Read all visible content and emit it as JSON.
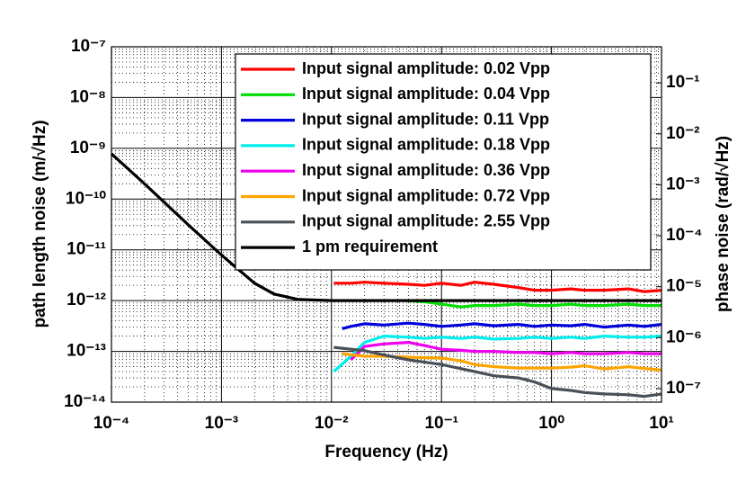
{
  "chart_data": {
    "type": "line",
    "xlabel": "Frequency (Hz)",
    "ylabel": "path length noise (m/√Hz)",
    "y2label": "phase noise (rad/√Hz)",
    "xscale": "log",
    "yscale": "log",
    "grid": true,
    "minor_grid": true,
    "legend": "upper right",
    "xlim": [
      0.0001,
      10
    ],
    "xticks": [
      {
        "value": 0.0001,
        "label": "10⁻⁴"
      },
      {
        "value": 0.001,
        "label": "10⁻³"
      },
      {
        "value": 0.01,
        "label": "10⁻²"
      },
      {
        "value": 0.1,
        "label": "10⁻¹"
      },
      {
        "value": 1,
        "label": "10⁰"
      },
      {
        "value": 10,
        "label": "10¹"
      }
    ],
    "ylim": [
      1e-14,
      1e-07
    ],
    "yticks": [
      {
        "value": 1e-14,
        "label": "10⁻¹⁴"
      },
      {
        "value": 1e-13,
        "label": "10⁻¹³"
      },
      {
        "value": 1e-12,
        "label": "10⁻¹²"
      },
      {
        "value": 1e-11,
        "label": "10⁻¹¹"
      },
      {
        "value": 1e-10,
        "label": "10⁻¹⁰"
      },
      {
        "value": 1e-09,
        "label": "10⁻⁹"
      },
      {
        "value": 1e-08,
        "label": "10⁻⁸"
      },
      {
        "value": 1e-07,
        "label": "10⁻⁷"
      }
    ],
    "y2lim": [
      5.42e-08,
      0.513
    ],
    "y2ticks": [
      {
        "value": 1e-07,
        "label": "10⁻⁷"
      },
      {
        "value": 1e-06,
        "label": "10⁻⁶"
      },
      {
        "value": 1e-05,
        "label": "10⁻⁵"
      },
      {
        "value": 0.0001,
        "label": "10⁻⁴"
      },
      {
        "value": 0.001,
        "label": "10⁻³"
      },
      {
        "value": 0.01,
        "label": "10⁻²"
      },
      {
        "value": 0.1,
        "label": "10⁻¹"
      }
    ],
    "series": [
      {
        "name": "Input signal amplitude: 0.02 Vpp",
        "color": "#ff0000",
        "x": [
          0.0105,
          0.015,
          0.02,
          0.03,
          0.05,
          0.07,
          0.1,
          0.15,
          0.2,
          0.3,
          0.5,
          0.7,
          1,
          1.5,
          2,
          3,
          5,
          7,
          10
        ],
        "values": [
          2.2e-12,
          2.2e-12,
          2.3e-12,
          2.2e-12,
          2.1e-12,
          2e-12,
          2.2e-12,
          2e-12,
          2.3e-12,
          2.1e-12,
          1.8e-12,
          1.6e-12,
          1.6e-12,
          1.7e-12,
          1.6e-12,
          1.6e-12,
          1.7e-12,
          1.5e-12,
          1.6e-12
        ]
      },
      {
        "name": "Input signal amplitude: 0.04 Vpp",
        "color": "#00dd00",
        "x": [
          0.05,
          0.07,
          0.1,
          0.15,
          0.2,
          0.3,
          0.5,
          0.7,
          1,
          1.5,
          2,
          3,
          5,
          7,
          10
        ],
        "values": [
          1e-12,
          9.5e-13,
          8.5e-13,
          7.5e-13,
          8e-13,
          8e-13,
          8.5e-13,
          8e-13,
          8e-13,
          8.5e-13,
          8e-13,
          8e-13,
          8.5e-13,
          8e-13,
          8e-13
        ]
      },
      {
        "name": "Input signal amplitude: 0.11 Vpp",
        "color": "#0000dd",
        "x": [
          0.0125,
          0.015,
          0.02,
          0.03,
          0.05,
          0.07,
          0.1,
          0.15,
          0.2,
          0.3,
          0.5,
          0.7,
          1,
          1.5,
          2,
          3,
          5,
          7,
          10
        ],
        "values": [
          2.8e-13,
          3.1e-13,
          3.5e-13,
          3.3e-13,
          3.6e-13,
          3.4e-13,
          3.1e-13,
          3.3e-13,
          3.5e-13,
          3.2e-13,
          3.4e-13,
          3.1e-13,
          3.3e-13,
          3.2e-13,
          3.4e-13,
          3e-13,
          3.3e-13,
          3.1e-13,
          3.4e-13
        ]
      },
      {
        "name": "Input signal amplitude: 0.18 Vpp",
        "color": "#00eeee",
        "x": [
          0.0105,
          0.015,
          0.02,
          0.03,
          0.05,
          0.07,
          0.1,
          0.15,
          0.2,
          0.3,
          0.5,
          0.7,
          1,
          1.5,
          2,
          3,
          5,
          7,
          10
        ],
        "values": [
          4e-14,
          8e-14,
          1.5e-13,
          2e-13,
          1.9e-13,
          1.8e-13,
          1.9e-13,
          1.8e-13,
          1.9e-13,
          1.75e-13,
          1.8e-13,
          1.9e-13,
          1.8e-13,
          1.9e-13,
          1.8e-13,
          2e-13,
          1.9e-13,
          1.9e-13,
          2e-13
        ]
      },
      {
        "name": "Input signal amplitude: 0.36 Vpp",
        "color": "#ee00ee",
        "x": [
          0.015,
          0.02,
          0.03,
          0.05,
          0.07,
          0.1,
          0.15,
          0.2,
          0.3,
          0.5,
          0.7,
          1,
          1.5,
          2,
          3,
          5,
          7,
          10
        ],
        "values": [
          6.8e-14,
          1.25e-13,
          1.4e-13,
          1.5e-13,
          1.3e-13,
          1.1e-13,
          1.05e-13,
          1e-13,
          1e-13,
          9.5e-14,
          9.5e-14,
          9e-14,
          9.5e-14,
          9e-14,
          9e-14,
          9.5e-14,
          9e-14,
          9e-14
        ]
      },
      {
        "name": "Input signal amplitude: 0.72 Vpp",
        "color": "#ffa500",
        "x": [
          0.0125,
          0.02,
          0.03,
          0.05,
          0.07,
          0.1,
          0.15,
          0.2,
          0.3,
          0.5,
          0.7,
          1,
          1.5,
          2,
          3,
          5,
          7,
          10
        ],
        "values": [
          9e-14,
          8e-14,
          8e-14,
          7.7e-14,
          7.5e-14,
          7.4e-14,
          6.5e-14,
          5.5e-14,
          5e-14,
          4.7e-14,
          4.7e-14,
          4.7e-14,
          4.9e-14,
          5.2e-14,
          4.5e-14,
          5e-14,
          4.6e-14,
          4.3e-14
        ]
      },
      {
        "name": "Input signal amplitude: 2.55 Vpp",
        "color": "#4a5058",
        "x": [
          0.0105,
          0.02,
          0.03,
          0.05,
          0.1,
          0.2,
          0.3,
          0.5,
          0.7,
          1,
          1.5,
          2,
          3,
          5,
          7,
          10
        ],
        "values": [
          1.2e-13,
          1.03e-13,
          8.5e-14,
          6.8e-14,
          5.5e-14,
          4e-14,
          3.3e-14,
          3e-14,
          2.5e-14,
          1.85e-14,
          1.7e-14,
          1.55e-14,
          1.45e-14,
          1.4e-14,
          1.3e-14,
          1.45e-14
        ]
      },
      {
        "name": "1 pm requirement",
        "color": "#000000",
        "x": [
          0.0001,
          0.0002,
          0.0005,
          0.001,
          0.002,
          0.003,
          0.005,
          0.01,
          10
        ],
        "values": [
          7.8e-10,
          2e-10,
          3.1e-11,
          7.9e-12,
          2.2e-12,
          1.35e-12,
          1.05e-12,
          1e-12,
          1e-12
        ]
      }
    ]
  }
}
